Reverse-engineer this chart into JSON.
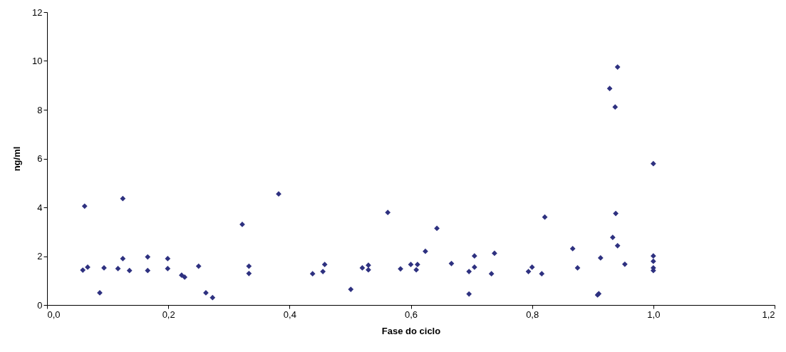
{
  "chart_data": {
    "type": "scatter",
    "xlabel": "Fase do ciclo",
    "ylabel": "ng/ml",
    "x": [
      0.062,
      0.125,
      0.059,
      0.067,
      0.094,
      0.087,
      0.117,
      0.125,
      0.136,
      0.166,
      0.166,
      0.199,
      0.199,
      0.222,
      0.227,
      0.25,
      0.262,
      0.273,
      0.322,
      0.333,
      0.333,
      0.382,
      0.438,
      0.455,
      0.458,
      0.501,
      0.52,
      0.53,
      0.53,
      0.562,
      0.583,
      0.6,
      0.611,
      0.609,
      0.624,
      0.643,
      0.667,
      0.696,
      0.696,
      0.705,
      0.705,
      0.738,
      0.733,
      0.794,
      0.8,
      0.816,
      0.821,
      0.867,
      0.875,
      0.908,
      0.91,
      0.913,
      0.933,
      0.938,
      0.941,
      0.953,
      1.0,
      1.0,
      1.0,
      1.0,
      0.941,
      0.928,
      0.937,
      1.0
    ],
    "series": [
      {
        "color": "#2e3180",
        "values": [
          4.05,
          4.36,
          1.43,
          1.55,
          1.52,
          0.5,
          1.49,
          1.9,
          1.41,
          1.97,
          1.41,
          1.9,
          1.49,
          1.22,
          1.14,
          1.59,
          0.5,
          0.3,
          3.3,
          1.59,
          1.29,
          4.55,
          1.28,
          1.37,
          1.66,
          0.64,
          1.52,
          1.63,
          1.44,
          3.79,
          1.48,
          1.66,
          1.66,
          1.44,
          2.2,
          3.14,
          1.7,
          1.37,
          0.45,
          2.01,
          1.55,
          2.12,
          1.28,
          1.37,
          1.55,
          1.28,
          3.6,
          2.31,
          1.52,
          0.41,
          0.46,
          1.93,
          2.77,
          3.75,
          2.43,
          1.67,
          2.01,
          1.79,
          1.52,
          1.41,
          9.75,
          8.87,
          8.11,
          5.79
        ]
      }
    ],
    "xlim": [
      0,
      1.2
    ],
    "xticks": [
      {
        "value": 0,
        "label": "0,0"
      },
      {
        "value": 0.2,
        "label": "0,2"
      },
      {
        "value": 0.4,
        "label": "0,4"
      },
      {
        "value": 0.6,
        "label": "0,6"
      },
      {
        "value": 0.8,
        "label": "0,8"
      },
      {
        "value": 1.0,
        "label": "1,0"
      },
      {
        "value": 1.2,
        "label": "1,2"
      }
    ],
    "ylim": [
      0,
      12
    ],
    "yticks": [
      0,
      2,
      4,
      6,
      8,
      10,
      12
    ],
    "marker": "diamond",
    "grid": false,
    "legend": false
  }
}
